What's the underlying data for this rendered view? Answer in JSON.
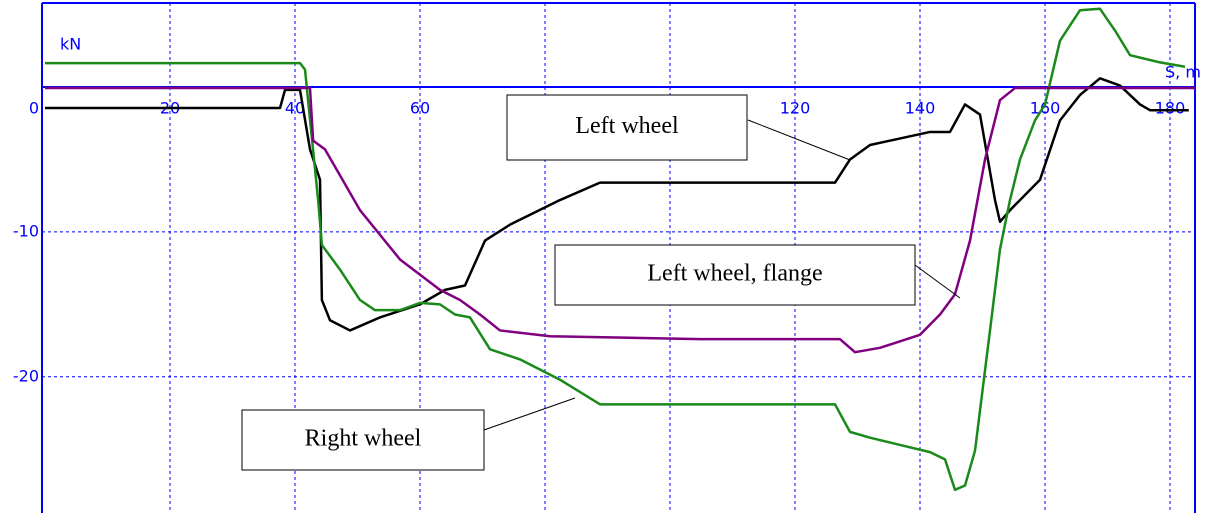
{
  "chart_data": {
    "type": "line",
    "y_label": "kN",
    "x_label": "S, m",
    "xlim": [
      0,
      184
    ],
    "ylim": [
      -29.4,
      5.8
    ],
    "xticks": [
      20,
      40,
      60,
      80,
      100,
      120,
      140,
      160,
      180
    ],
    "yticks": [
      0,
      -10,
      -20
    ],
    "grid": true,
    "series": [
      {
        "name": "Left wheel",
        "color": "#000000",
        "x": [
          0,
          37.6,
          38.4,
          40.8,
          42.4,
          44,
          44.3,
          45.6,
          48.8,
          53.6,
          60,
          64,
          67.2,
          70.4,
          74.4,
          82.4,
          88.8,
          126.4,
          128.8,
          132,
          141.6,
          144.8,
          147.2,
          149.6,
          152,
          152.8,
          154.4,
          159.2,
          162.4,
          165.6,
          168.8,
          172,
          175.2,
          176.8,
          183
        ],
        "values": [
          -1.45,
          -1.45,
          -0.2,
          -0.2,
          -4.3,
          -6.4,
          -14.7,
          -16.1,
          -16.8,
          -15.9,
          -15,
          -14,
          -13.7,
          -10.6,
          -9.5,
          -7.8,
          -6.6,
          -6.6,
          -5,
          -4,
          -3.1,
          -3.1,
          -1.2,
          -1.9,
          -7.8,
          -9.3,
          -8.5,
          -6.4,
          -2.3,
          -0.55,
          0.6,
          0.1,
          -1.2,
          -1.6,
          -1.6
        ]
      },
      {
        "name": "Right wheel",
        "color": "#1a8a1a",
        "x": [
          0,
          40.8,
          41.6,
          43.7,
          44.3,
          47.2,
          50.4,
          52.8,
          56.8,
          60,
          63.2,
          65.6,
          68,
          71.2,
          76,
          82.4,
          88.8,
          93.6,
          126.4,
          128.8,
          132,
          136.8,
          141.6,
          144,
          145.6,
          147.2,
          148.8,
          151.2,
          152.8,
          154.4,
          156,
          158.4,
          160,
          162.4,
          165.6,
          168.8,
          171.2,
          173.6,
          178.4,
          182.4
        ],
        "values": [
          1.65,
          1.65,
          1.2,
          -7.8,
          -10.9,
          -12.6,
          -14.7,
          -15.4,
          -15.4,
          -14.9,
          -15,
          -15.7,
          -15.9,
          -18.1,
          -18.8,
          -20.2,
          -21.9,
          -21.9,
          -21.9,
          -23.8,
          -24.2,
          -24.7,
          -25.2,
          -25.7,
          -27.8,
          -27.5,
          -25.1,
          -16.8,
          -11.2,
          -7.8,
          -5,
          -2.3,
          -1.2,
          3.2,
          5.3,
          5.4,
          3.9,
          2.2,
          1.7,
          1.4
        ]
      },
      {
        "name": "Left wheel, flange",
        "color": "#800080",
        "x": [
          0,
          42.4,
          42.9,
          44.8,
          47.2,
          50.4,
          56.8,
          63.2,
          66.4,
          69.6,
          72.8,
          80.8,
          104.8,
          127.2,
          129.6,
          133.6,
          140,
          143.2,
          145.6,
          148,
          150.4,
          152.8,
          155.2,
          184
        ],
        "values": [
          -0.07,
          -0.07,
          -3.7,
          -4.3,
          -6.1,
          -8.5,
          -11.9,
          -14,
          -14.7,
          -15.7,
          -16.8,
          -17.2,
          -17.4,
          -17.4,
          -18.3,
          -18,
          -17.1,
          -15.7,
          -14.3,
          -10.6,
          -5,
          -0.9,
          -0.07,
          -0.07
        ]
      }
    ],
    "annotations": [
      "Left wheel",
      "Left wheel, flange",
      "Right wheel"
    ]
  }
}
